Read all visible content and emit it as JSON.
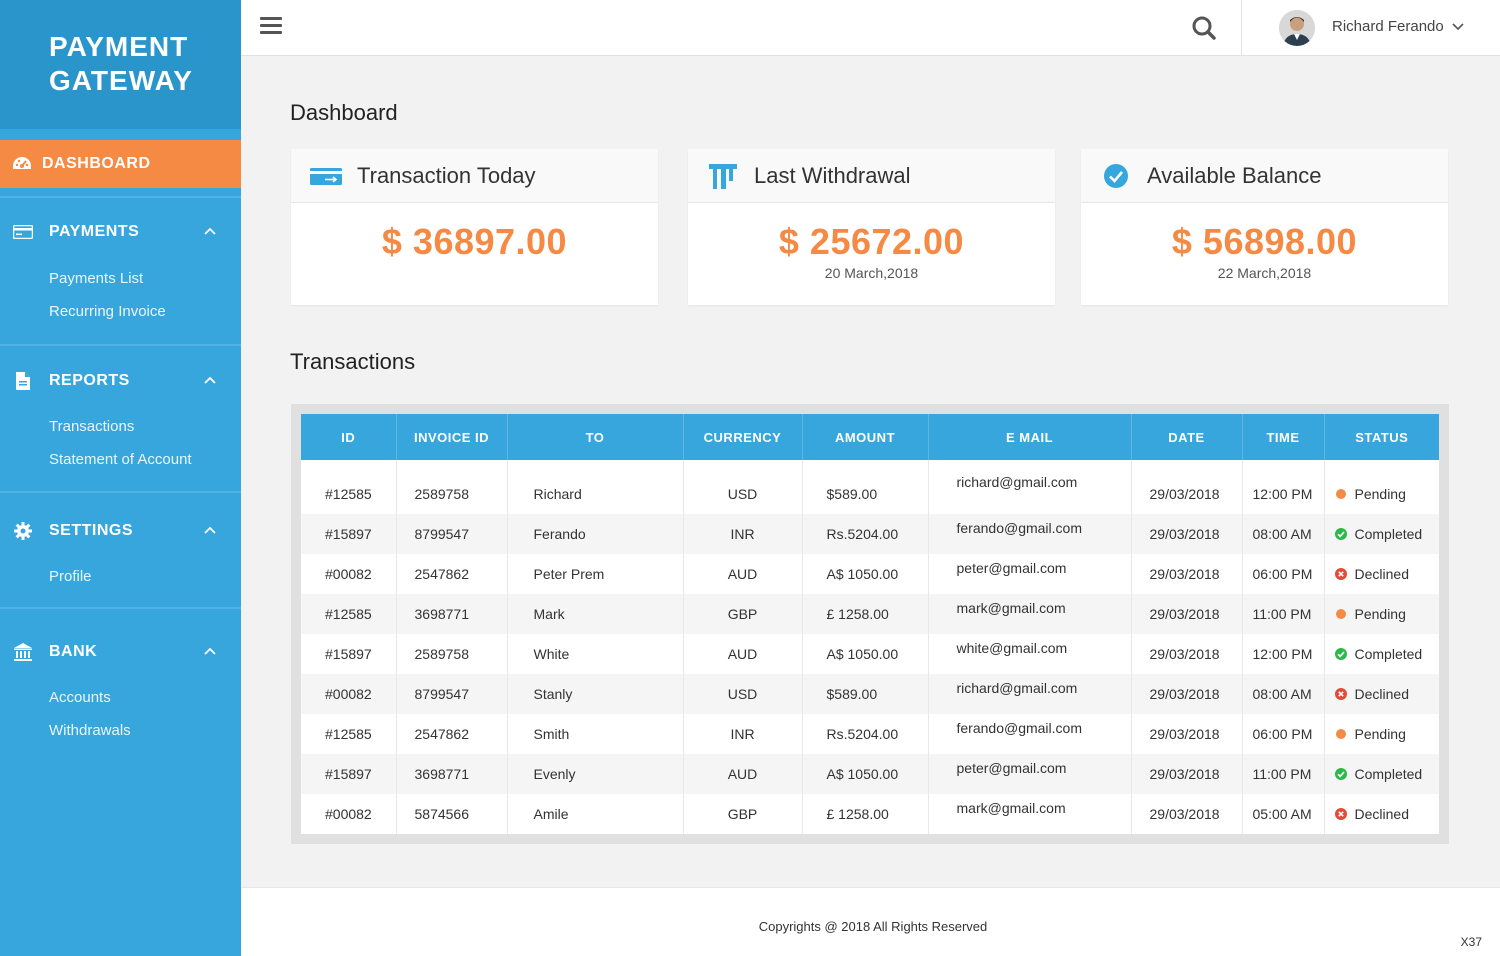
{
  "brand": {
    "line1": "PAYMENT",
    "line2": "GATEWAY"
  },
  "sidebar": {
    "active": {
      "label": "DASHBOARD",
      "icon": "dashboard-icon"
    },
    "sections": [
      {
        "label": "PAYMENTS",
        "icon": "card-icon",
        "items": [
          "Payments List",
          "Recurring Invoice"
        ]
      },
      {
        "label": "REPORTS",
        "icon": "document-icon",
        "items": [
          "Transactions",
          "Statement of Account"
        ]
      },
      {
        "label": "SETTINGS",
        "icon": "gear-icon",
        "items": [
          "Profile"
        ]
      },
      {
        "label": "BANK",
        "icon": "bank-icon",
        "items": [
          "Accounts",
          "Withdrawals"
        ]
      }
    ]
  },
  "topbar": {
    "user_name": "Richard Ferando"
  },
  "dashboard": {
    "title": "Dashboard",
    "cards": [
      {
        "title": "Transaction Today",
        "value": "$ 36897.00",
        "date": ""
      },
      {
        "title": "Last Withdrawal",
        "value": "$ 25672.00",
        "date": "20 March,2018"
      },
      {
        "title": "Available Balance",
        "value": "$ 56898.00",
        "date": "22 March,2018"
      }
    ]
  },
  "transactions": {
    "title": "Transactions",
    "columns": [
      "ID",
      "INVOICE ID",
      "TO",
      "CURRENCY",
      "AMOUNT",
      "E MAIL",
      "DATE",
      "TIME",
      "STATUS"
    ],
    "rows": [
      [
        "#12585",
        "2589758",
        "Richard",
        "USD",
        "$589.00",
        "richard@gmail.com",
        "29/03/2018",
        "12:00 PM",
        "Pending"
      ],
      [
        "#15897",
        "8799547",
        "Ferando",
        "INR",
        "Rs.5204.00",
        "ferando@gmail.com",
        "29/03/2018",
        "08:00 AM",
        "Completed"
      ],
      [
        "#00082",
        "2547862",
        "Peter Prem",
        "AUD",
        "A$ 1050.00",
        "peter@gmail.com",
        "29/03/2018",
        "06:00 PM",
        "Declined"
      ],
      [
        "#12585",
        "3698771",
        "Mark",
        "GBP",
        "£ 1258.00",
        "mark@gmail.com",
        "29/03/2018",
        "11:00 PM",
        "Pending"
      ],
      [
        "#15897",
        "2589758",
        "White",
        "AUD",
        "A$ 1050.00",
        "white@gmail.com",
        "29/03/2018",
        "12:00 PM",
        "Completed"
      ],
      [
        "#00082",
        "8799547",
        "Stanly",
        "USD",
        "$589.00",
        "richard@gmail.com",
        "29/03/2018",
        "08:00 AM",
        "Declined"
      ],
      [
        "#12585",
        "2547862",
        "Smith",
        "INR",
        "Rs.5204.00",
        "ferando@gmail.com",
        "29/03/2018",
        "06:00 PM",
        "Pending"
      ],
      [
        "#15897",
        "3698771",
        "Evenly",
        "AUD",
        "A$ 1050.00",
        "peter@gmail.com",
        "29/03/2018",
        "11:00 PM",
        "Completed"
      ],
      [
        "#00082",
        "5874566",
        "Amile",
        "GBP",
        "£ 1258.00",
        "mark@gmail.com",
        "29/03/2018",
        "05:00 AM",
        "Declined"
      ]
    ]
  },
  "status_colors": {
    "Pending": "#f58a45",
    "Completed": "#2db84b",
    "Declined": "#e04b3a"
  },
  "colors": {
    "primary": "#36a6dc",
    "accent": "#f58a45"
  },
  "footer": {
    "copyright": "Copyrights @ 2018 All Rights Reserved",
    "code": "X37"
  }
}
